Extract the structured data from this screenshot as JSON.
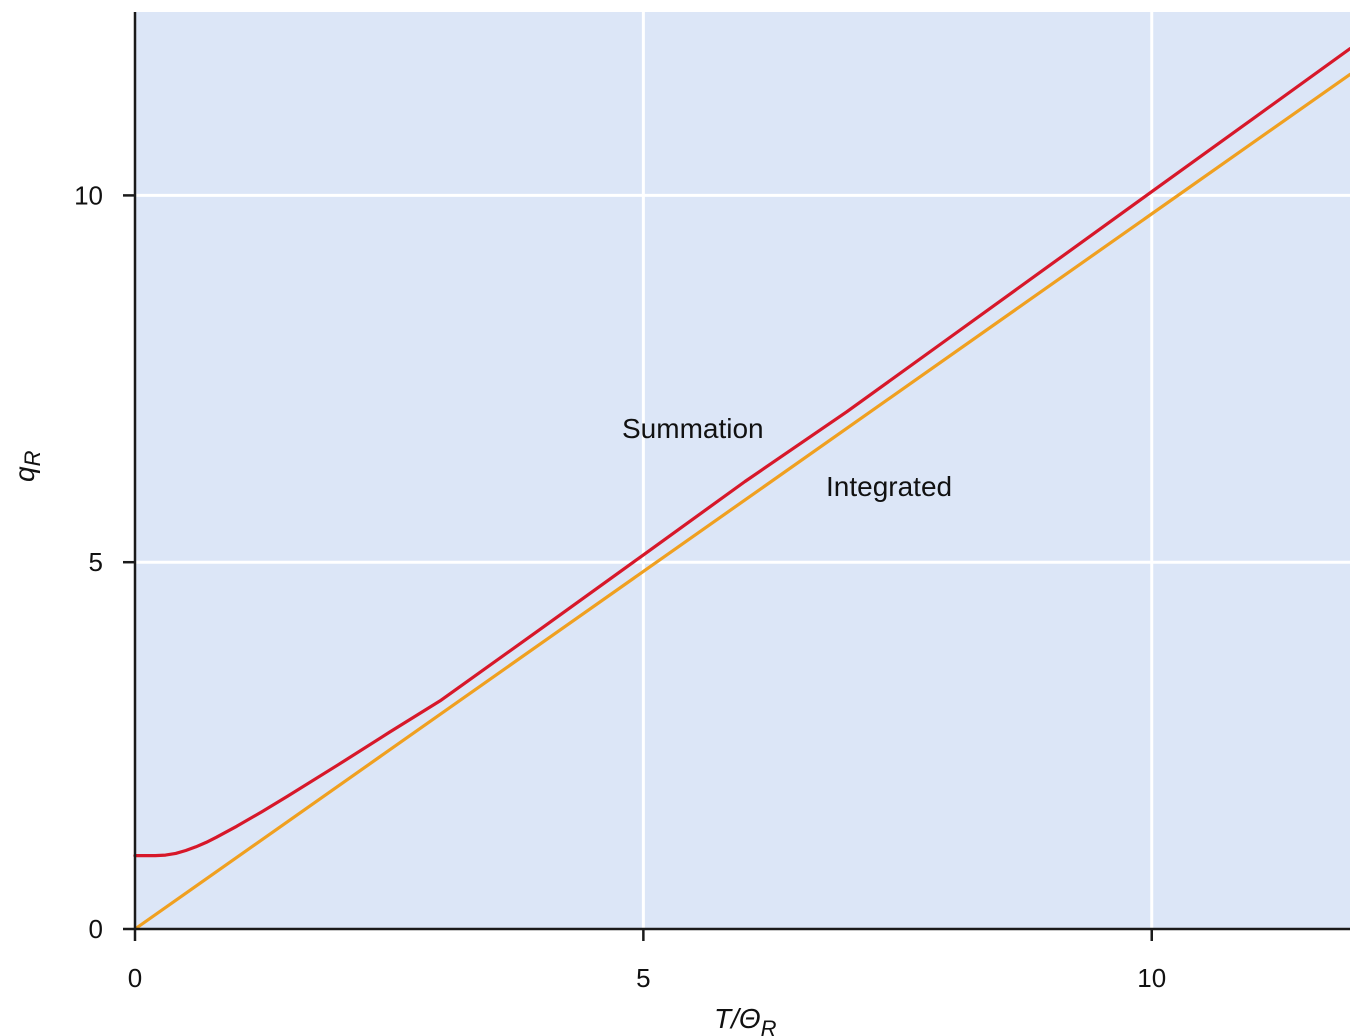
{
  "chart_data": {
    "type": "line",
    "xlabel": {
      "main": "T/Θ",
      "sub": "R"
    },
    "ylabel": {
      "main": "q",
      "sub": "R"
    },
    "xlim": [
      0,
      11.95
    ],
    "ylim": [
      0,
      12.5
    ],
    "xticks": [
      0,
      5,
      10
    ],
    "yticks": [
      0,
      5,
      10
    ],
    "grid": true,
    "colors": {
      "background": "#dce6f7",
      "grid": "#ffffff",
      "summation": "#d7182a",
      "integrated": "#f0a020",
      "axis": "#1a1a1a"
    },
    "series": [
      {
        "name": "Summation",
        "x": [
          0,
          0.1,
          0.2,
          0.3,
          0.4,
          0.5,
          0.6,
          0.7,
          0.8,
          1,
          1.25,
          1.5,
          2,
          2.5,
          3,
          4,
          5,
          6,
          7,
          8,
          9,
          10,
          11,
          11.95
        ],
        "values": [
          1.0,
          1.0,
          1.0,
          1.007,
          1.03,
          1.07,
          1.12,
          1.18,
          1.25,
          1.4,
          1.6,
          1.81,
          2.24,
          2.68,
          3.11,
          4.1,
          5.1,
          6.1,
          7.05,
          8.05,
          9.05,
          10.05,
          11.05,
          12.0
        ]
      },
      {
        "name": "Integrated",
        "x": [
          0,
          11.95
        ],
        "values": [
          0,
          11.65
        ]
      }
    ],
    "annotations": [
      {
        "text": "Summation",
        "series": "Summation"
      },
      {
        "text": "Integrated",
        "series": "Integrated"
      }
    ]
  }
}
